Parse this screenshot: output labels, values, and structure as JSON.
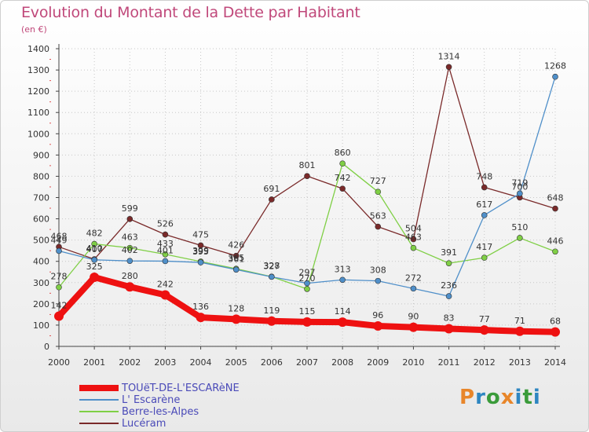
{
  "title": "Evolution du Montant de la Dette par Habitant",
  "unit": "(en €)",
  "logo": {
    "text": "Proxiti",
    "letter_colors": [
      "#e8862a",
      "#2e86c1",
      "#3a9b3a",
      "#e8862a",
      "#2e86c1",
      "#3a9b3a",
      "#2e86c1"
    ]
  },
  "chart_data": {
    "type": "line",
    "x": [
      2000,
      2001,
      2002,
      2003,
      2004,
      2005,
      2006,
      2007,
      2008,
      2009,
      2010,
      2011,
      2012,
      2013,
      2014
    ],
    "ylim": [
      0,
      1400
    ],
    "yticks": [
      0,
      100,
      200,
      300,
      400,
      500,
      600,
      700,
      800,
      900,
      1000,
      1100,
      1200,
      1300,
      1400
    ],
    "grid": true,
    "legend_position": "bottom-left",
    "series": [
      {
        "name": "TOUëT-DE-L'ESCARèNE",
        "color": "#ee1111",
        "values": [
          142,
          325,
          280,
          242,
          136,
          128,
          119,
          115,
          114,
          96,
          90,
          83,
          77,
          71,
          68
        ]
      },
      {
        "name": "L' Escarène",
        "color": "#4f8fc9",
        "values": [
          449,
          407,
          402,
          401,
          395,
          361,
          327,
          297,
          313,
          308,
          272,
          236,
          617,
          719,
          1268
        ]
      },
      {
        "name": "Berre-les-Alpes",
        "color": "#7fcf45",
        "values": [
          278,
          482,
          463,
          433,
          399,
          365,
          328,
          270,
          860,
          727,
          463,
          391,
          417,
          510,
          446
        ]
      },
      {
        "name": "Lucéram",
        "color": "#7a2a2a",
        "values": [
          468,
          410,
          599,
          526,
          475,
          426,
          691,
          801,
          742,
          563,
          504,
          1314,
          748,
          700,
          648
        ]
      }
    ]
  }
}
